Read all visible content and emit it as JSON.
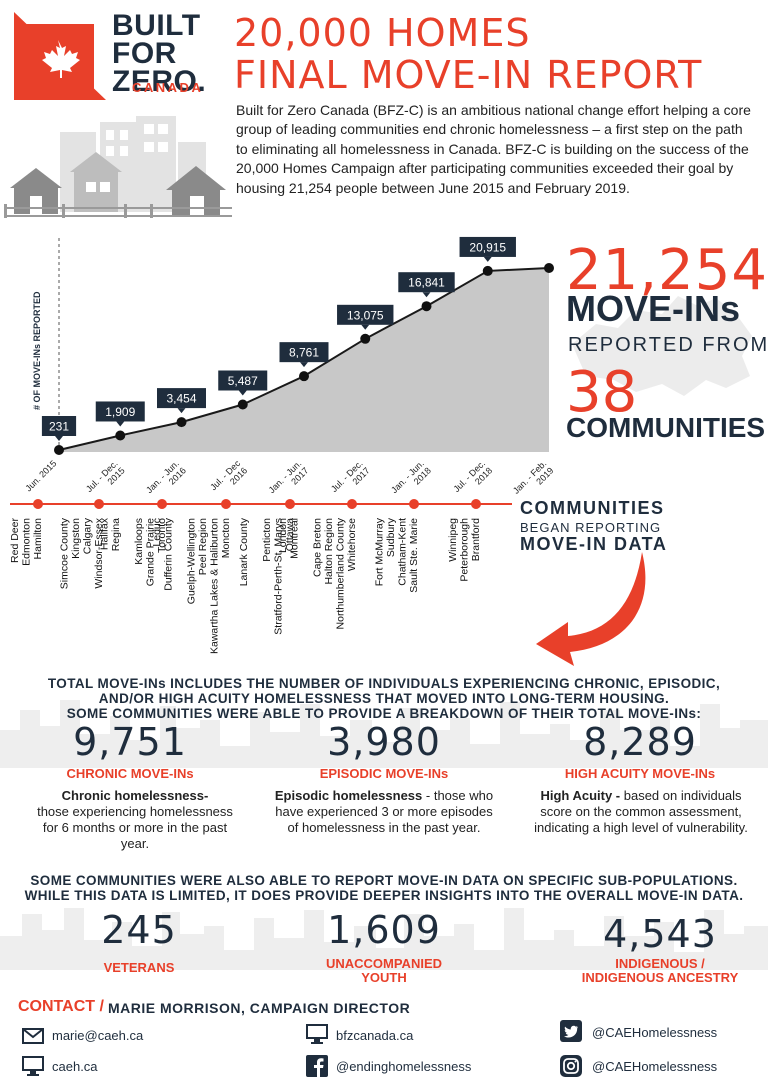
{
  "logo": {
    "line1": "BUILT",
    "line2": "FOR",
    "line3": "ZERO.",
    "line4": "CANADA"
  },
  "title": {
    "line1": "20,000 HOMES",
    "line2": "FINAL MOVE-IN REPORT"
  },
  "intro": "Built for Zero Canada (BFZ-C) is an ambitious national change effort helping a core group of leading communities end chronic homelessness – a first step on the path to eliminating all homelessness in Canada. BFZ-C is building on the success of the 20,000 Homes Campaign after participating communities exceeded their goal by housing 21,254 people between June 2015 and February 2019.",
  "chart_data": {
    "type": "area",
    "ylabel": "# OF MOVE-INs REPORTED",
    "categories": [
      "Jun. 2015",
      "Jul. - Dec. 2015",
      "Jan. - Jun. 2016",
      "Jul. - Dec 2016",
      "Jan. - Jun. 2017",
      "Jul. - Dec. 2017",
      "Jan. - Jun. 2018",
      "Jul. - Dec. 2018",
      "Jan. - Feb. 2019"
    ],
    "values": [
      231,
      1909,
      3454,
      5487,
      8761,
      13075,
      16841,
      20915,
      21254
    ],
    "data_labels": [
      "231",
      "1,909",
      "3,454",
      "5,487",
      "8,761",
      "13,075",
      "16,841",
      "20,915",
      null
    ],
    "ylim": [
      0,
      24000
    ],
    "grid": false,
    "colors": {
      "area": "#c8c8c8",
      "line": "#1a1a1a",
      "label_bg": "#1f2d3d",
      "timeline": "#e8402a"
    }
  },
  "stats": {
    "total": "21,254",
    "move_ins": "MOVE-INs",
    "reported_from": "REPORTED FROM",
    "communities_count": "38",
    "communities": "COMMUNITIES"
  },
  "timeline": {
    "caption1": "COMMUNITIES",
    "caption2": "BEGAN REPORTING",
    "caption3": "MOVE-IN DATA",
    "groups": [
      [
        "Hamilton",
        "Edmonton",
        "Red Deer",
        "",
        "",
        "Waterloo Region",
        "Medicine Hat",
        "Saint John"
      ],
      [
        "Windsor-Essex",
        "Calgary",
        "Kingston",
        "Simcoe County"
      ],
      [
        "Toronto",
        "Grande Prairie",
        "Kamloops",
        "",
        "Regina",
        "Halifax"
      ],
      [
        "Moncton",
        "Kawartha Lakes & Haliburton",
        "Peel Region",
        "Guelph-Wellington",
        "",
        "Dufferin County",
        "Leduc"
      ],
      [
        "Ottawa",
        "Stratford-Perth-St. Marys",
        "Penticton",
        "",
        "Lanark County"
      ],
      [
        "Whitehorse",
        "Northumberland County",
        "Halton Region",
        "Cape Breton",
        "",
        "Montreal",
        "London"
      ],
      [
        "Sault Ste. Marie",
        "Chatham-Kent",
        "Sudbury",
        "Fort McMurray"
      ],
      [
        "Brantford",
        "Peterborough",
        "Winnipeg"
      ]
    ]
  },
  "breakdown": {
    "heading1": "TOTAL MOVE-INs INCLUDES THE NUMBER OF INDIVIDUALS EXPERIENCING CHRONIC, EPISODIC,",
    "heading2": "AND/OR HIGH ACUITY HOMELESSNESS THAT MOVED INTO LONG-TERM HOUSING.",
    "heading3": "SOME COMMUNITIES WERE ABLE TO PROVIDE A BREAKDOWN OF THEIR TOTAL MOVE-INs:",
    "items": [
      {
        "value": "9,751",
        "label": "CHRONIC MOVE-INs",
        "term": "Chronic homelessness-",
        "desc": "those experiencing homelessness for 6 months or more in the past year."
      },
      {
        "value": "3,980",
        "label": "EPISODIC MOVE-INs",
        "term": "Episodic homelessness",
        "desc": " - those who have experienced 3 or more episodes of homelessness in the past year."
      },
      {
        "value": "8,289",
        "label": "HIGH ACUITY MOVE-INs",
        "term": "High Acuity -",
        "desc": "  based on individuals score on the common assessment, indicating a high level of vulnerability."
      }
    ]
  },
  "subpop": {
    "heading1": "SOME COMMUNITIES WERE ALSO ABLE TO REPORT MOVE-IN DATA ON SPECIFIC SUB-POPULATIONS.",
    "heading2": "WHILE THIS DATA IS LIMITED, IT DOES PROVIDE DEEPER INSIGHTS INTO THE OVERALL MOVE-IN DATA.",
    "items": [
      {
        "value": "245",
        "label1": "VETERANS",
        "label2": ""
      },
      {
        "value": "1,609",
        "label1": "UNACCOMPANIED",
        "label2": "YOUTH"
      },
      {
        "value": "4,543",
        "label1": "INDIGENOUS /",
        "label2": "INDIGENOUS ANCESTRY"
      }
    ]
  },
  "contact": {
    "label": "CONTACT /",
    "person": "MARIE MORRISON, CAMPAIGN DIRECTOR",
    "email": "marie@caeh.ca",
    "web1": "caeh.ca",
    "web2": "bfzcanada.ca",
    "facebook": "@endinghomelessness",
    "twitter": "@CAEHomelessness",
    "instagram": "@CAEHomelessness"
  }
}
